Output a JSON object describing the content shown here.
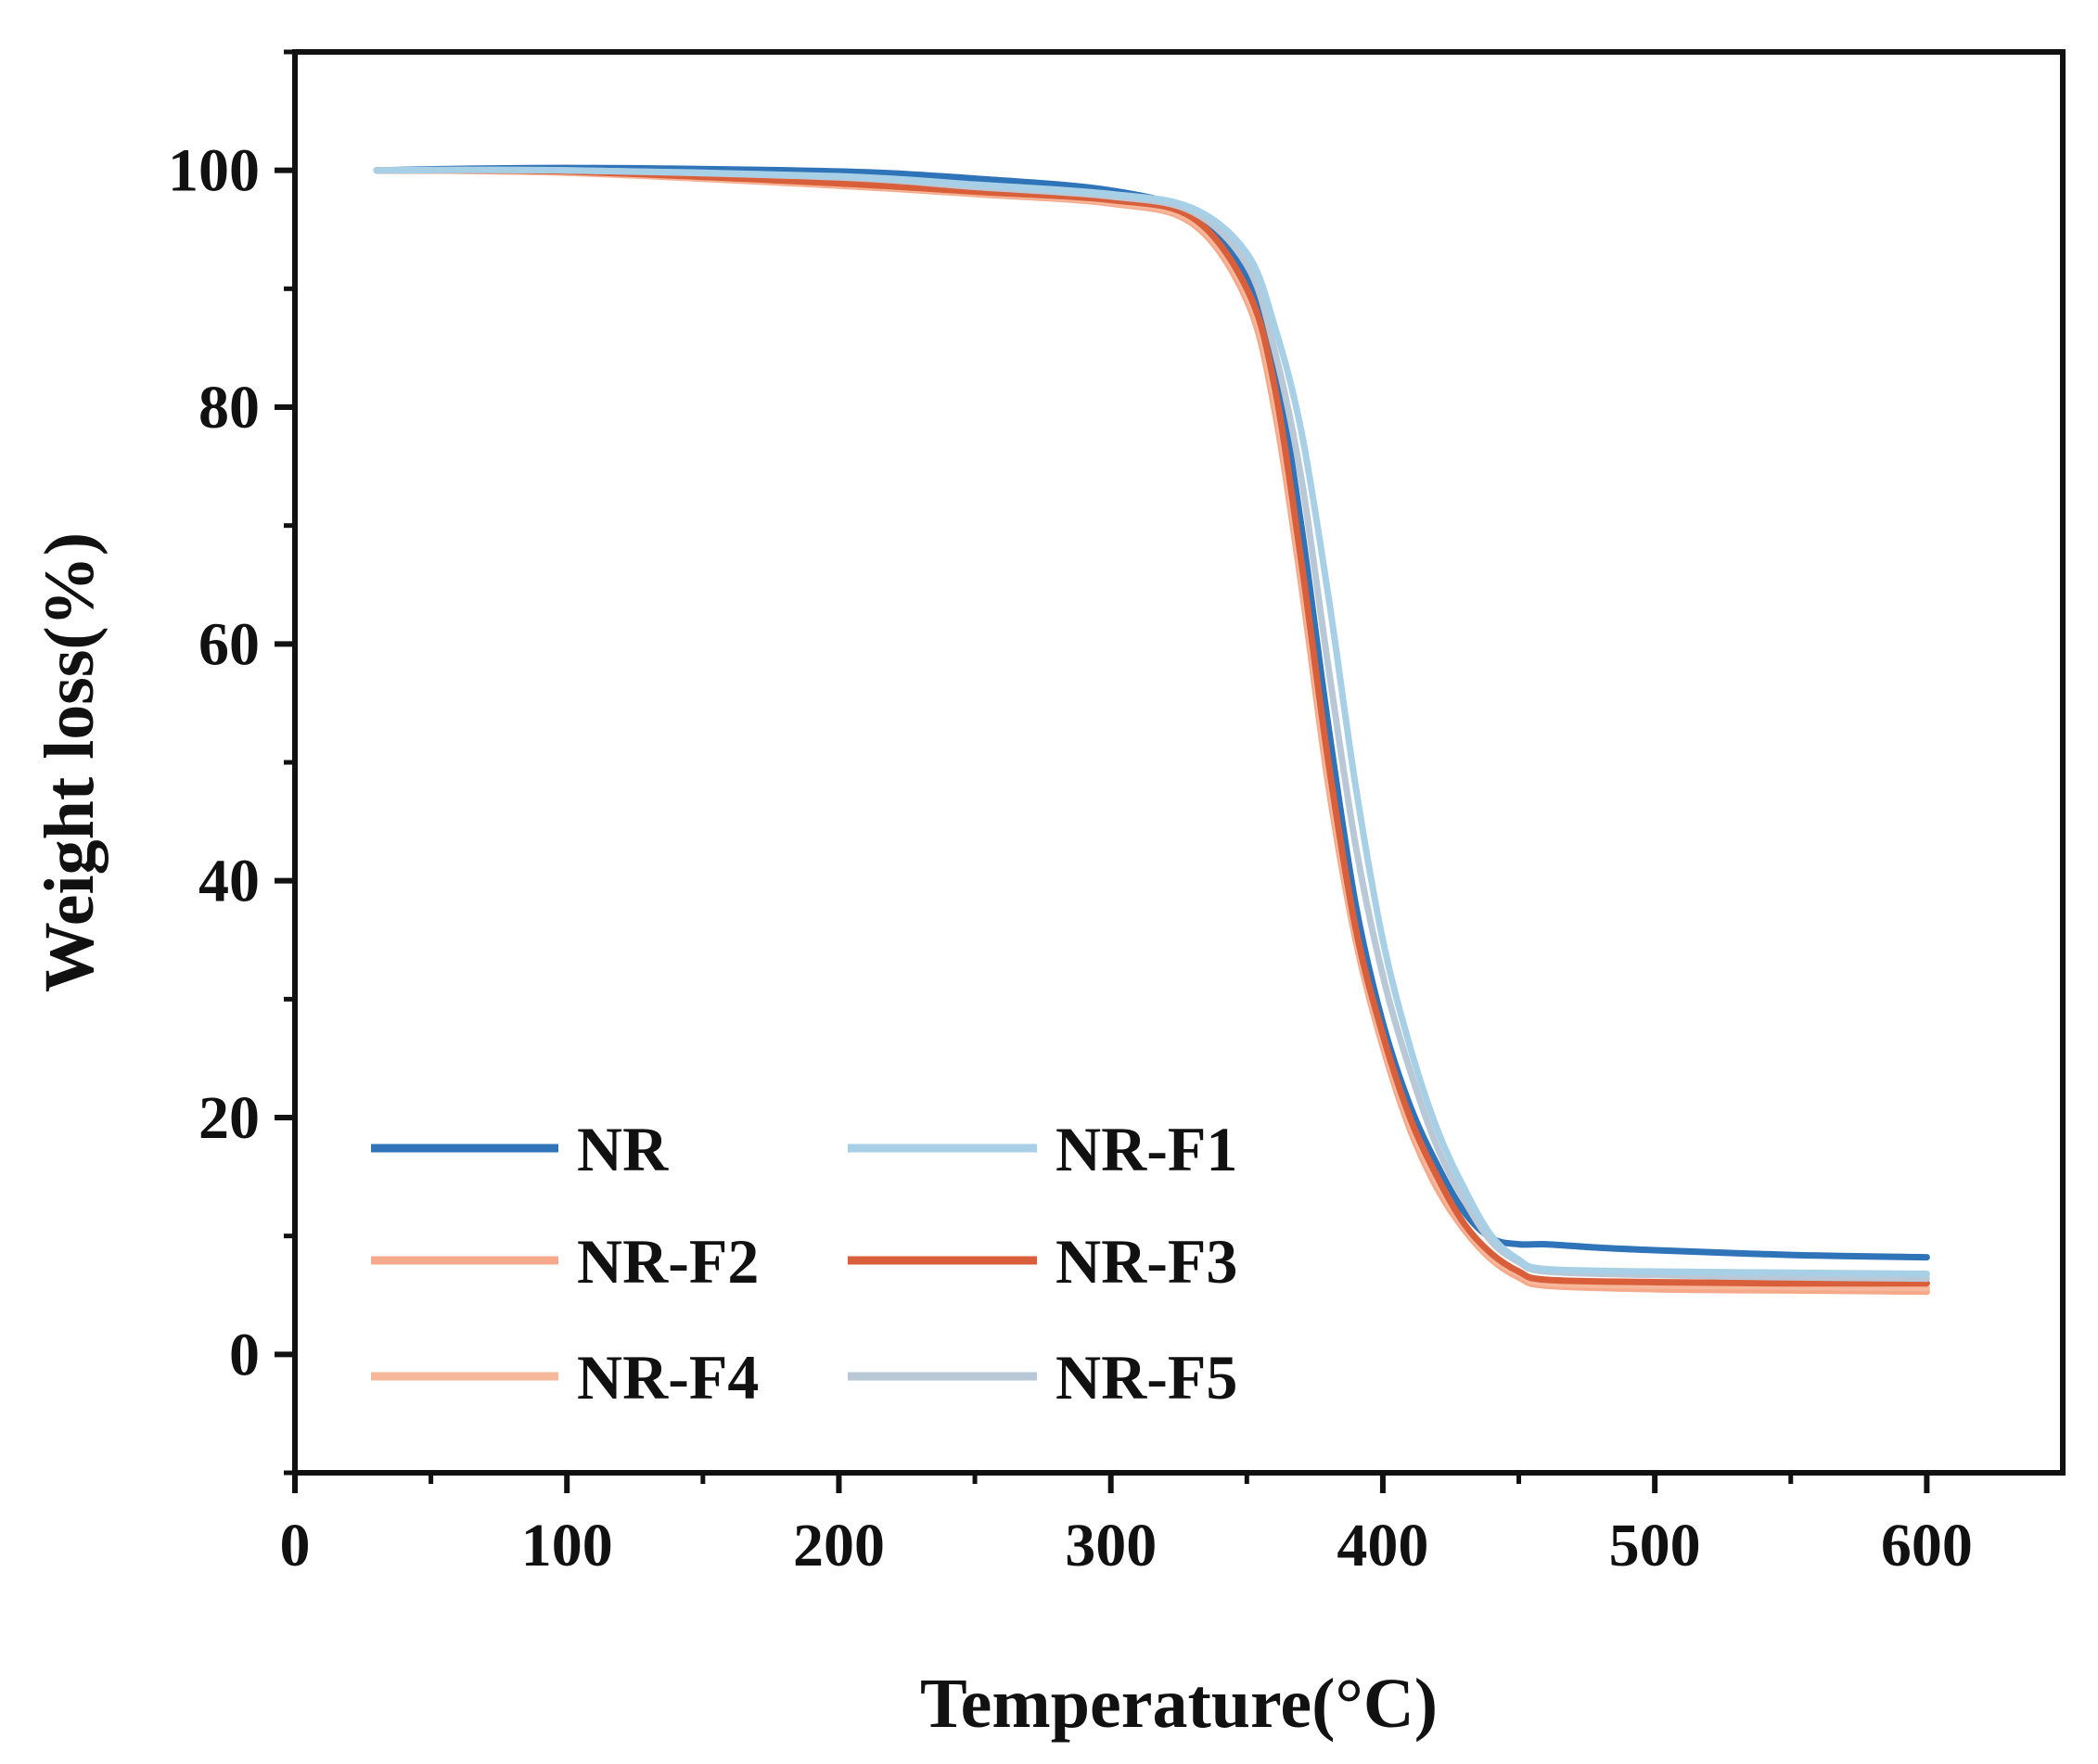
{
  "chart_data": {
    "type": "line",
    "title": "",
    "xlabel": "Temperature(°C)",
    "ylabel": "Weight loss(%)",
    "xlim": [
      0,
      650
    ],
    "ylim": [
      -10,
      110
    ],
    "xticks": [
      0,
      100,
      200,
      300,
      400,
      500,
      600
    ],
    "yticks": [
      0,
      20,
      40,
      60,
      80,
      100
    ],
    "x_tick_labels": [
      "0",
      "100",
      "200",
      "300",
      "400",
      "500",
      "600"
    ],
    "y_tick_labels": [
      "0",
      "20",
      "40",
      "60",
      "80",
      "100"
    ],
    "grid": false,
    "legend_position": "bottom-left",
    "series": [
      {
        "name": "NR",
        "color": "#2f73b8",
        "points": [
          [
            30,
            100
          ],
          [
            100,
            100.2
          ],
          [
            200,
            99.9
          ],
          [
            250,
            99.3
          ],
          [
            300,
            98.3
          ],
          [
            330,
            96.3
          ],
          [
            350,
            91
          ],
          [
            360,
            84
          ],
          [
            370,
            70
          ],
          [
            380,
            53
          ],
          [
            390,
            38
          ],
          [
            400,
            28
          ],
          [
            410,
            21
          ],
          [
            420,
            16
          ],
          [
            430,
            12
          ],
          [
            440,
            9.8
          ],
          [
            450,
            9.3
          ],
          [
            460,
            9.3
          ],
          [
            480,
            9.0
          ],
          [
            500,
            8.8
          ],
          [
            550,
            8.4
          ],
          [
            600,
            8.2
          ]
        ]
      },
      {
        "name": "NR-F1",
        "color": "#a7d0e6",
        "points": [
          [
            30,
            100
          ],
          [
            100,
            100
          ],
          [
            200,
            99.5
          ],
          [
            250,
            98.8
          ],
          [
            300,
            98
          ],
          [
            330,
            96.8
          ],
          [
            350,
            93
          ],
          [
            360,
            87
          ],
          [
            370,
            78
          ],
          [
            380,
            64
          ],
          [
            390,
            48
          ],
          [
            400,
            35
          ],
          [
            410,
            26
          ],
          [
            420,
            19
          ],
          [
            430,
            14
          ],
          [
            440,
            10
          ],
          [
            450,
            8
          ],
          [
            460,
            7.2
          ],
          [
            500,
            7
          ],
          [
            550,
            6.9
          ],
          [
            600,
            6.8
          ]
        ]
      },
      {
        "name": "NR-F2",
        "color": "#f5a98a",
        "points": [
          [
            30,
            100
          ],
          [
            100,
            99.8
          ],
          [
            200,
            98.7
          ],
          [
            250,
            98
          ],
          [
            300,
            97.2
          ],
          [
            330,
            95.5
          ],
          [
            350,
            89
          ],
          [
            360,
            80
          ],
          [
            370,
            65
          ],
          [
            380,
            48
          ],
          [
            390,
            35
          ],
          [
            400,
            26
          ],
          [
            410,
            19
          ],
          [
            420,
            14
          ],
          [
            430,
            10.5
          ],
          [
            440,
            8
          ],
          [
            450,
            6.5
          ],
          [
            460,
            5.8
          ],
          [
            500,
            5.5
          ],
          [
            550,
            5.4
          ],
          [
            600,
            5.3
          ]
        ]
      },
      {
        "name": "NR-F3",
        "color": "#d95f3b",
        "points": [
          [
            30,
            100
          ],
          [
            100,
            99.9
          ],
          [
            200,
            98.9
          ],
          [
            250,
            98.2
          ],
          [
            300,
            97.5
          ],
          [
            330,
            96
          ],
          [
            350,
            90
          ],
          [
            360,
            82
          ],
          [
            370,
            67
          ],
          [
            380,
            50
          ],
          [
            390,
            36
          ],
          [
            400,
            27
          ],
          [
            410,
            20
          ],
          [
            420,
            15
          ],
          [
            430,
            11
          ],
          [
            440,
            8.5
          ],
          [
            450,
            7
          ],
          [
            460,
            6.3
          ],
          [
            500,
            6.1
          ],
          [
            550,
            6
          ],
          [
            600,
            6
          ]
        ]
      },
      {
        "name": "NR-F4",
        "color": "#f7b79a",
        "points": [
          [
            30,
            100
          ],
          [
            100,
            99.8
          ],
          [
            200,
            98.8
          ],
          [
            250,
            98.1
          ],
          [
            300,
            97.3
          ],
          [
            330,
            95.7
          ],
          [
            350,
            89.5
          ],
          [
            360,
            81
          ],
          [
            370,
            66
          ],
          [
            380,
            49
          ],
          [
            390,
            35.5
          ],
          [
            400,
            26.5
          ],
          [
            410,
            19.5
          ],
          [
            420,
            14.5
          ],
          [
            430,
            10.8
          ],
          [
            440,
            8.2
          ],
          [
            450,
            6.8
          ],
          [
            460,
            6
          ],
          [
            500,
            5.8
          ],
          [
            550,
            5.7
          ],
          [
            600,
            5.6
          ]
        ]
      },
      {
        "name": "NR-F5",
        "color": "#b9c8d6",
        "points": [
          [
            30,
            100
          ],
          [
            100,
            100
          ],
          [
            200,
            99.4
          ],
          [
            250,
            98.6
          ],
          [
            300,
            97.8
          ],
          [
            330,
            96.5
          ],
          [
            350,
            92
          ],
          [
            360,
            85
          ],
          [
            370,
            74
          ],
          [
            380,
            58
          ],
          [
            390,
            43
          ],
          [
            400,
            32
          ],
          [
            410,
            24
          ],
          [
            420,
            17.5
          ],
          [
            430,
            13
          ],
          [
            440,
            9.5
          ],
          [
            450,
            7.8
          ],
          [
            460,
            7
          ],
          [
            500,
            6.7
          ],
          [
            550,
            6.5
          ],
          [
            600,
            6.4
          ]
        ]
      }
    ]
  }
}
